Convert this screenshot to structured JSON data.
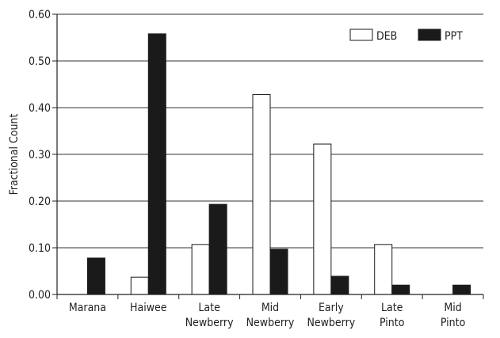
{
  "chart_data": {
    "type": "bar",
    "ylabel": "Fractional Count",
    "xlabel": "",
    "ylim": [
      0,
      0.6
    ],
    "yticks": [
      "0.00",
      "0.10",
      "0.20",
      "0.30",
      "0.40",
      "0.50",
      "0.60"
    ],
    "ytick_values": [
      0,
      0.1,
      0.2,
      0.3,
      0.4,
      0.5,
      0.6
    ],
    "grid": "horizontal",
    "legend_position": "top-right",
    "categories": [
      [
        "Marana"
      ],
      [
        "Haiwee"
      ],
      [
        "Late",
        "Newberry"
      ],
      [
        "Mid",
        "Newberry"
      ],
      [
        "Early",
        "Newberry"
      ],
      [
        "Late",
        "Pinto"
      ],
      [
        "Mid",
        "Pinto"
      ]
    ],
    "series": [
      {
        "name": "DEB",
        "color": "#ffffff",
        "values": [
          0,
          0.037,
          0.107,
          0.428,
          0.322,
          0.107,
          0
        ]
      },
      {
        "name": "PPT",
        "color": "#1a1a1a",
        "values": [
          0.078,
          0.558,
          0.193,
          0.097,
          0.039,
          0.02,
          0.02
        ]
      }
    ]
  }
}
